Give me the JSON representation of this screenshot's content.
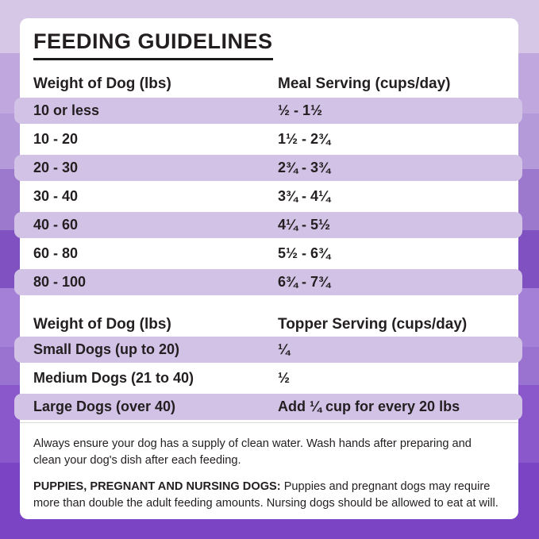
{
  "page": {
    "title": "FEEDING GUIDELINES"
  },
  "meal_table": {
    "headers": {
      "weight": "Weight of Dog (lbs)",
      "serving": "Meal Serving (cups/day)"
    },
    "rows": [
      {
        "weight": "10 or less",
        "serving": "½ - 1½"
      },
      {
        "weight": "10 - 20",
        "serving": "1½ - 2¾"
      },
      {
        "weight": "20 - 30",
        "serving": "2¾ - 3¾"
      },
      {
        "weight": "30 - 40",
        "serving": "3¾ - 4¼"
      },
      {
        "weight": "40 - 60",
        "serving": "4¼ - 5½"
      },
      {
        "weight": "60 - 80",
        "serving": "5½ - 6¾"
      },
      {
        "weight": "80 - 100",
        "serving": "6¾ - 7¾"
      }
    ]
  },
  "topper_table": {
    "headers": {
      "weight": "Weight of Dog (lbs)",
      "serving": "Topper Serving (cups/day)"
    },
    "rows": [
      {
        "weight": "Small Dogs (up to 20)",
        "serving": "¼"
      },
      {
        "weight": "Medium Dogs (21 to 40)",
        "serving": "½"
      },
      {
        "weight": "Large Dogs (over 40)",
        "serving": "Add ¼ cup for every 20 lbs"
      }
    ]
  },
  "notes": {
    "water": "Always ensure your dog has a supply of clean water. Wash hands after preparing and clean your dog's dish after each feeding.",
    "puppies_label": "PUPPIES, PREGNANT AND NURSING DOGS:",
    "puppies_text": " Puppies and pregnant dogs may require more than double the adult feeding amounts. Nursing dogs should be allowed to eat at will."
  },
  "colors": {
    "card_background": "#ffffff",
    "row_highlight": "#d2c2e6",
    "text": "#231f20",
    "background_bands": [
      "#d6c7e7",
      "#c0a8df",
      "#b59ad9",
      "#9c79cd",
      "#7f51c1",
      "#a480d6",
      "#9a73d0",
      "#8b58cb",
      "#7b44c4"
    ]
  }
}
